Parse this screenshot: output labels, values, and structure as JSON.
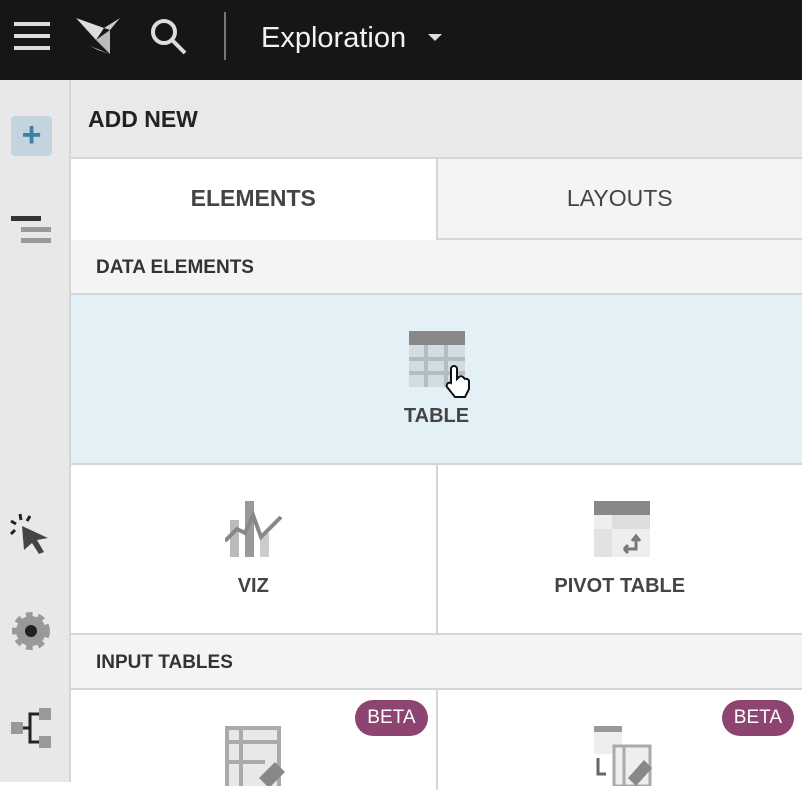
{
  "topbar": {
    "title": "Exploration",
    "icons": [
      "menu-icon",
      "logo-icon",
      "search-icon",
      "chevron-down-icon"
    ]
  },
  "rail": {
    "icons": [
      "plus-icon",
      "outline-icon",
      "interaction-cursor-icon",
      "settings-gear-icon",
      "lineage-icon"
    ],
    "active_color": "#3f7fa0"
  },
  "panel": {
    "header": "ADD NEW",
    "tabs": [
      {
        "label": "ELEMENTS",
        "active": true
      },
      {
        "label": "LAYOUTS",
        "active": false
      }
    ],
    "data_section": "DATA ELEMENTS",
    "data_items": [
      {
        "label": "TABLE",
        "hovered": true
      },
      {
        "label": "VIZ"
      },
      {
        "label": "PIVOT TABLE"
      }
    ],
    "input_section": "INPUT TABLES",
    "input_items": [
      {
        "badge": "BETA"
      },
      {
        "badge": "BETA"
      }
    ],
    "colors": {
      "hover": "#e3f1f7",
      "beta": "#8e4470"
    }
  }
}
